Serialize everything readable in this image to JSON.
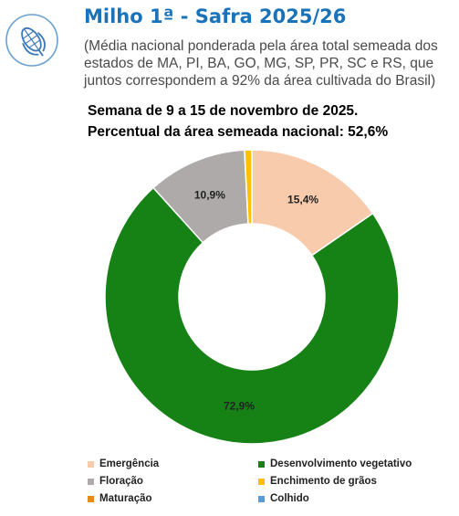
{
  "header": {
    "title": "Milho 1ª - Safra 2025/26",
    "subtitle": "(Média nacional ponderada pela área total semeada dos estados de MA, PI, BA, GO, MG, SP, PR, SC e RS, que juntos correspondem a 92% da área cultivada do Brasil)",
    "week": "Semana de 9 a 15 de novembro de 2025.",
    "percent_sown": "Percentual da área semeada nacional: 52,6%",
    "icon": "corn-icon",
    "accent_color": "#1a72b8"
  },
  "chart_data": {
    "type": "pie",
    "donut": true,
    "categories": [
      "Emergência",
      "Desenvolvimento vegetativo",
      "Floração",
      "Enchimento de grãos",
      "Maturação",
      "Colhido"
    ],
    "values": [
      15.4,
      72.9,
      10.9,
      0.8,
      0,
      0
    ],
    "data_labels": [
      "15,4%",
      "72,9%",
      "10,9%",
      "",
      "",
      ""
    ],
    "colors": [
      "#f8cbad",
      "#168216",
      "#aeaaaa",
      "#ffc000",
      "#e88a14",
      "#5b9bd5"
    ],
    "legend_position": "bottom"
  }
}
